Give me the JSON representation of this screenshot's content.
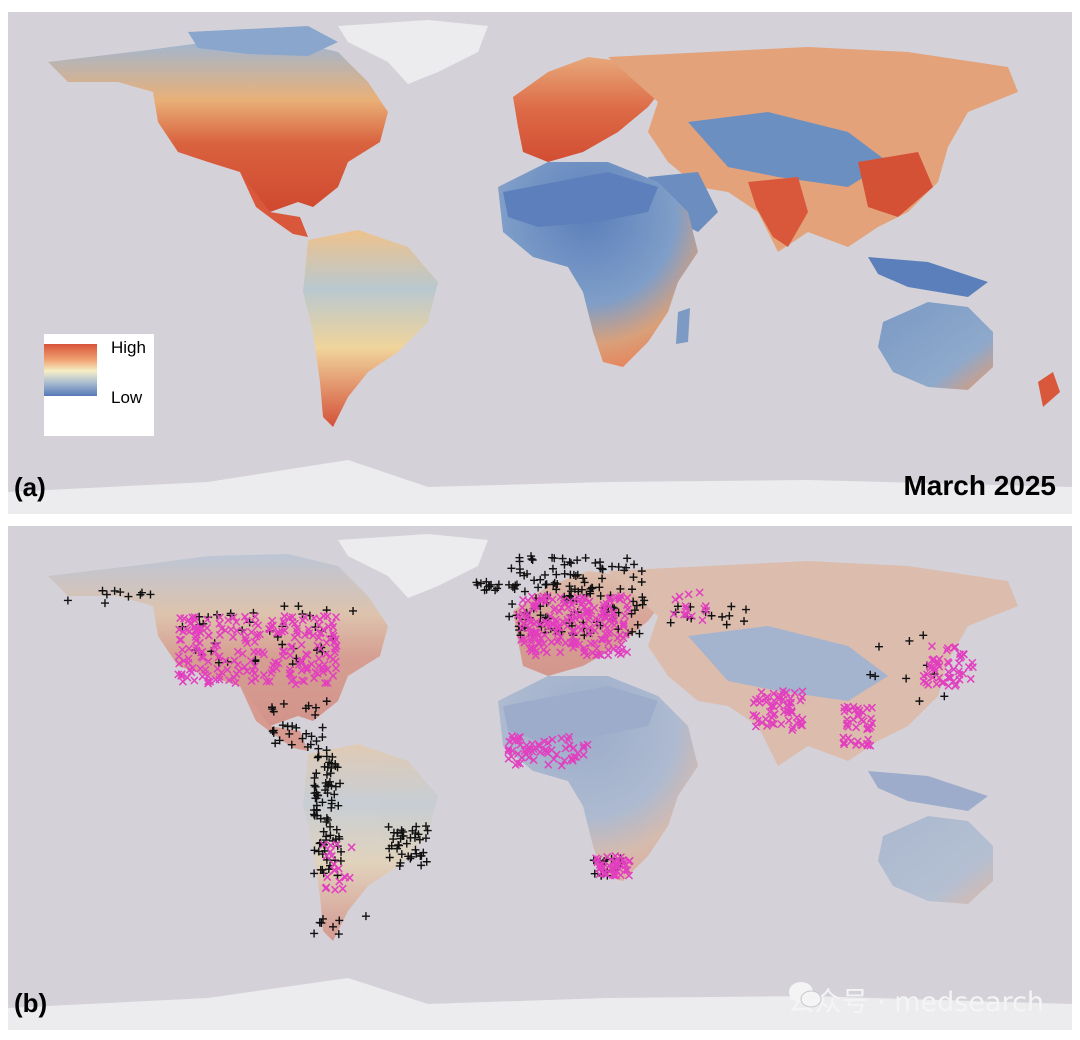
{
  "panel_a": {
    "label": "(a)",
    "date": "March 2025",
    "legend": {
      "high": "High",
      "low": "Low",
      "colors": [
        "#d7543a",
        "#f5efc6",
        "#5679b6"
      ]
    },
    "colors": {
      "ocean": "#d4d2d8",
      "ice": "#ececee",
      "high": "#d95a3c",
      "mid": "#f2e3b0",
      "low": "#5b7fbb"
    }
  },
  "panel_b": {
    "label": "(b)",
    "marker_colors": {
      "plus": "#111111",
      "cross": "#e23fbf"
    },
    "watermark": "公众号 · medsearch"
  }
}
